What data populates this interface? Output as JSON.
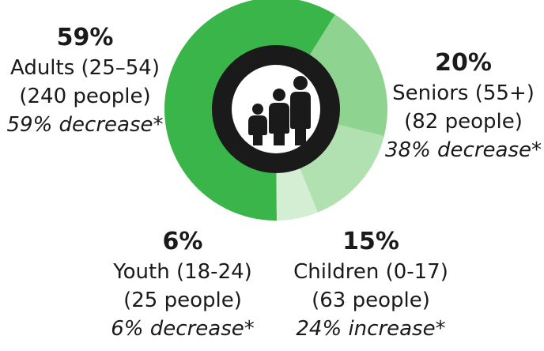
{
  "chart_data": {
    "type": "pie",
    "title": "",
    "categories": [
      "Adults (25–54)",
      "Seniors (55+)",
      "Children (0-17)",
      "Youth (18-24)"
    ],
    "values": [
      59,
      20,
      15,
      6
    ],
    "colors": [
      "#3ab54a",
      "#8ed38f",
      "#b1e1b0",
      "#d4eed4"
    ],
    "center_icon": "family-icon",
    "center_ring_color": "#1a1a1a",
    "segments": [
      {
        "percent_label": "59%",
        "category": "Adults (25–54)",
        "count": "(240 people)",
        "change": "59% decrease*"
      },
      {
        "percent_label": "20%",
        "category": "Seniors (55+)",
        "count": "(82 people)",
        "change": "38% decrease*"
      },
      {
        "percent_label": "15%",
        "category": "Children (0-17)",
        "count": "(63 people)",
        "change": "24% increase*"
      },
      {
        "percent_label": "6%",
        "category": "Youth (18-24)",
        "count": "(25 people)",
        "change": "6% decrease*"
      }
    ]
  }
}
